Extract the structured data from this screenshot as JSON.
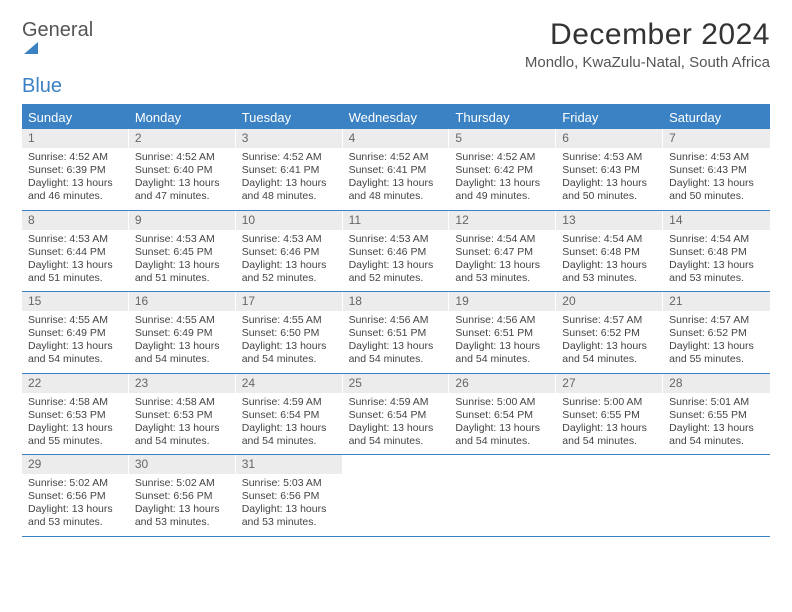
{
  "brand": {
    "name_a": "General",
    "name_b": "Blue"
  },
  "title": "December 2024",
  "location": "Mondlo, KwaZulu-Natal, South Africa",
  "colors": {
    "accent": "#3b82c4",
    "header_bg": "#3b82c4",
    "header_text": "#ffffff",
    "daynum_bg": "#ececec",
    "border": "#3b82c4",
    "text": "#444444",
    "background": "#ffffff"
  },
  "day_names": [
    "Sunday",
    "Monday",
    "Tuesday",
    "Wednesday",
    "Thursday",
    "Friday",
    "Saturday"
  ],
  "grid": {
    "columns": 7,
    "rows": 5
  },
  "days": [
    {
      "n": "1",
      "sr": "4:52 AM",
      "ss": "6:39 PM",
      "dl": "13 hours and 46 minutes."
    },
    {
      "n": "2",
      "sr": "4:52 AM",
      "ss": "6:40 PM",
      "dl": "13 hours and 47 minutes."
    },
    {
      "n": "3",
      "sr": "4:52 AM",
      "ss": "6:41 PM",
      "dl": "13 hours and 48 minutes."
    },
    {
      "n": "4",
      "sr": "4:52 AM",
      "ss": "6:41 PM",
      "dl": "13 hours and 48 minutes."
    },
    {
      "n": "5",
      "sr": "4:52 AM",
      "ss": "6:42 PM",
      "dl": "13 hours and 49 minutes."
    },
    {
      "n": "6",
      "sr": "4:53 AM",
      "ss": "6:43 PM",
      "dl": "13 hours and 50 minutes."
    },
    {
      "n": "7",
      "sr": "4:53 AM",
      "ss": "6:43 PM",
      "dl": "13 hours and 50 minutes."
    },
    {
      "n": "8",
      "sr": "4:53 AM",
      "ss": "6:44 PM",
      "dl": "13 hours and 51 minutes."
    },
    {
      "n": "9",
      "sr": "4:53 AM",
      "ss": "6:45 PM",
      "dl": "13 hours and 51 minutes."
    },
    {
      "n": "10",
      "sr": "4:53 AM",
      "ss": "6:46 PM",
      "dl": "13 hours and 52 minutes."
    },
    {
      "n": "11",
      "sr": "4:53 AM",
      "ss": "6:46 PM",
      "dl": "13 hours and 52 minutes."
    },
    {
      "n": "12",
      "sr": "4:54 AM",
      "ss": "6:47 PM",
      "dl": "13 hours and 53 minutes."
    },
    {
      "n": "13",
      "sr": "4:54 AM",
      "ss": "6:48 PM",
      "dl": "13 hours and 53 minutes."
    },
    {
      "n": "14",
      "sr": "4:54 AM",
      "ss": "6:48 PM",
      "dl": "13 hours and 53 minutes."
    },
    {
      "n": "15",
      "sr": "4:55 AM",
      "ss": "6:49 PM",
      "dl": "13 hours and 54 minutes."
    },
    {
      "n": "16",
      "sr": "4:55 AM",
      "ss": "6:49 PM",
      "dl": "13 hours and 54 minutes."
    },
    {
      "n": "17",
      "sr": "4:55 AM",
      "ss": "6:50 PM",
      "dl": "13 hours and 54 minutes."
    },
    {
      "n": "18",
      "sr": "4:56 AM",
      "ss": "6:51 PM",
      "dl": "13 hours and 54 minutes."
    },
    {
      "n": "19",
      "sr": "4:56 AM",
      "ss": "6:51 PM",
      "dl": "13 hours and 54 minutes."
    },
    {
      "n": "20",
      "sr": "4:57 AM",
      "ss": "6:52 PM",
      "dl": "13 hours and 54 minutes."
    },
    {
      "n": "21",
      "sr": "4:57 AM",
      "ss": "6:52 PM",
      "dl": "13 hours and 55 minutes."
    },
    {
      "n": "22",
      "sr": "4:58 AM",
      "ss": "6:53 PM",
      "dl": "13 hours and 55 minutes."
    },
    {
      "n": "23",
      "sr": "4:58 AM",
      "ss": "6:53 PM",
      "dl": "13 hours and 54 minutes."
    },
    {
      "n": "24",
      "sr": "4:59 AM",
      "ss": "6:54 PM",
      "dl": "13 hours and 54 minutes."
    },
    {
      "n": "25",
      "sr": "4:59 AM",
      "ss": "6:54 PM",
      "dl": "13 hours and 54 minutes."
    },
    {
      "n": "26",
      "sr": "5:00 AM",
      "ss": "6:54 PM",
      "dl": "13 hours and 54 minutes."
    },
    {
      "n": "27",
      "sr": "5:00 AM",
      "ss": "6:55 PM",
      "dl": "13 hours and 54 minutes."
    },
    {
      "n": "28",
      "sr": "5:01 AM",
      "ss": "6:55 PM",
      "dl": "13 hours and 54 minutes."
    },
    {
      "n": "29",
      "sr": "5:02 AM",
      "ss": "6:56 PM",
      "dl": "13 hours and 53 minutes."
    },
    {
      "n": "30",
      "sr": "5:02 AM",
      "ss": "6:56 PM",
      "dl": "13 hours and 53 minutes."
    },
    {
      "n": "31",
      "sr": "5:03 AM",
      "ss": "6:56 PM",
      "dl": "13 hours and 53 minutes."
    }
  ],
  "labels": {
    "sunrise": "Sunrise:",
    "sunset": "Sunset:",
    "daylight": "Daylight:"
  },
  "typography": {
    "title_fontsize": 30,
    "location_fontsize": 15,
    "dayheader_fontsize": 13,
    "daynum_fontsize": 12,
    "cell_fontsize": 10.5
  }
}
